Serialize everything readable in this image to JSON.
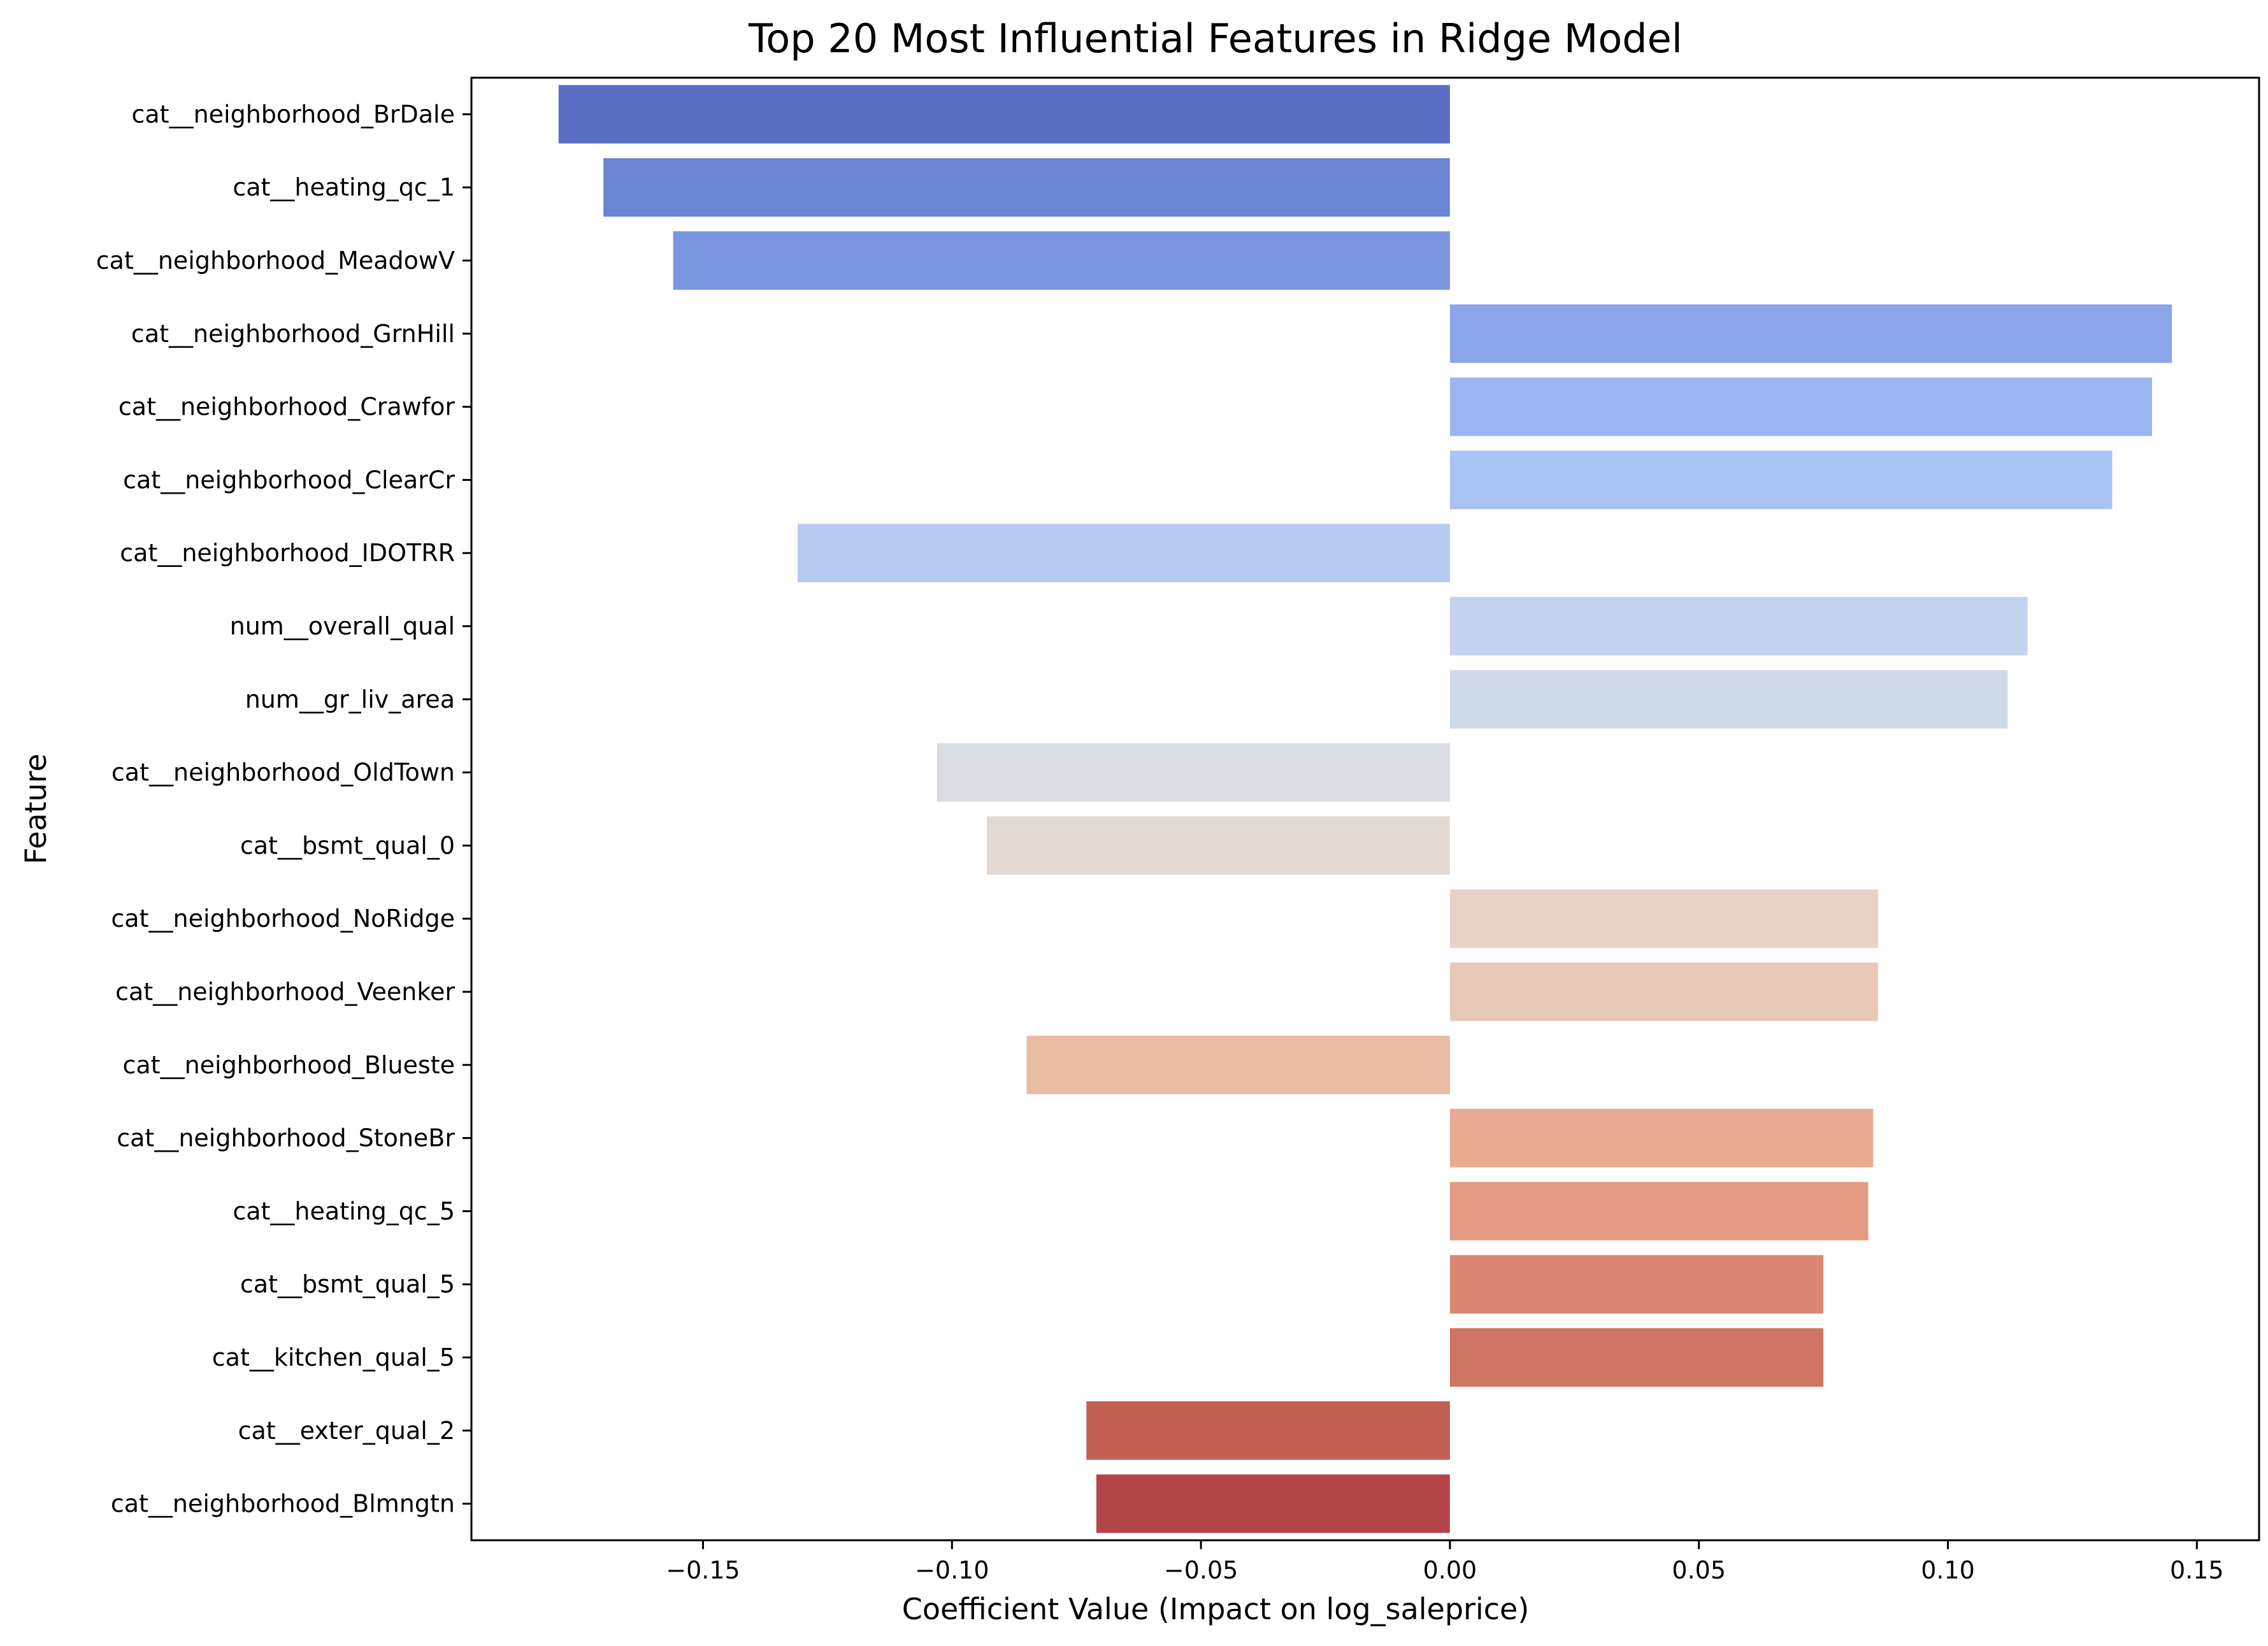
{
  "chart_data": {
    "type": "bar",
    "orientation": "horizontal",
    "title": "Top 20 Most Influential Features in Ridge Model",
    "xlabel": "Coefficient Value (Impact on log_saleprice)",
    "ylabel": "Feature",
    "xlim": [
      -0.1965,
      0.1625
    ],
    "xticks": [
      -0.15,
      -0.1,
      -0.05,
      0.0,
      0.05,
      0.1,
      0.15
    ],
    "xtick_labels": [
      "−0.15",
      "−0.10",
      "−0.05",
      "0.00",
      "0.05",
      "0.10",
      "0.15"
    ],
    "grid": false,
    "legend": "none",
    "categories": [
      "cat__neighborhood_BrDale",
      "cat__heating_qc_1",
      "cat__neighborhood_MeadowV",
      "cat__neighborhood_GrnHill",
      "cat__neighborhood_Crawfor",
      "cat__neighborhood_ClearCr",
      "cat__neighborhood_IDOTRR",
      "num__overall_qual",
      "num__gr_liv_area",
      "cat__neighborhood_OldTown",
      "cat__bsmt_qual_0",
      "cat__neighborhood_NoRidge",
      "cat__neighborhood_Veenker",
      "cat__neighborhood_Blueste",
      "cat__neighborhood_StoneBr",
      "cat__heating_qc_5",
      "cat__bsmt_qual_5",
      "cat__kitchen_qual_5",
      "cat__exter_qual_2",
      "cat__neighborhood_Blmngtn"
    ],
    "values": [
      -0.179,
      -0.17,
      -0.156,
      0.145,
      0.141,
      0.133,
      -0.131,
      0.116,
      0.112,
      -0.103,
      -0.093,
      0.086,
      0.086,
      -0.085,
      0.085,
      0.084,
      0.075,
      0.075,
      -0.073,
      -0.071
    ],
    "colors": [
      "#5a6fc4",
      "#6b84d3",
      "#7b96e0",
      "#8aa6e9",
      "#9ab5f1",
      "#a9c3f4",
      "#b7cbf2",
      "#c4d3ef",
      "#cfdae9",
      "#d9dce3",
      "#e2d9d3",
      "#e6d2c6",
      "#e8c9b8",
      "#eabba5",
      "#e9ab94",
      "#e39b82",
      "#da8873",
      "#d07463",
      "#c15f53",
      "#b34448"
    ]
  }
}
